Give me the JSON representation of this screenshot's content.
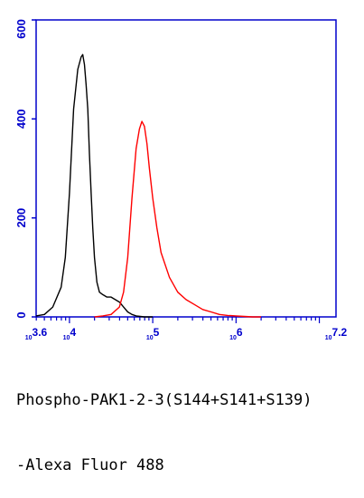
{
  "chart_data": {
    "type": "line",
    "title": "",
    "xlabel_lines": [
      "Phospho-PAK1-2-3(S144+S141+S139)",
      "-Alexa Fluor 488"
    ],
    "ylabel": "",
    "xscale": "log",
    "xlim": [
      3.6,
      7.2
    ],
    "ylim": [
      0,
      600
    ],
    "yticks": [
      "0",
      "200",
      "400",
      "600"
    ],
    "xticks": [
      {
        "pos": 3.6,
        "label": "10 3.6"
      },
      {
        "pos": 4,
        "label": "10 4"
      },
      {
        "pos": 5,
        "label": "10 5"
      },
      {
        "pos": 6,
        "label": "10 6"
      },
      {
        "pos": 7.2,
        "label": "10 7.2"
      }
    ],
    "series": [
      {
        "color": "#000000",
        "x": [
          3.6,
          3.7,
          3.8,
          3.9,
          3.95,
          4.0,
          4.05,
          4.1,
          4.14,
          4.16,
          4.18,
          4.2,
          4.22,
          4.24,
          4.26,
          4.28,
          4.3,
          4.33,
          4.36,
          4.4,
          4.45,
          4.5,
          4.55,
          4.6,
          4.65,
          4.7,
          4.75,
          4.8,
          4.85,
          4.9,
          4.95,
          5.0
        ],
        "y": [
          2,
          5,
          20,
          60,
          120,
          250,
          420,
          500,
          525,
          530,
          510,
          470,
          420,
          330,
          250,
          180,
          120,
          70,
          50,
          45,
          40,
          40,
          35,
          30,
          20,
          10,
          5,
          2,
          1,
          0,
          0,
          0
        ]
      },
      {
        "color": "#ff0000",
        "x": [
          4.3,
          4.4,
          4.5,
          4.6,
          4.65,
          4.7,
          4.75,
          4.8,
          4.84,
          4.87,
          4.9,
          4.93,
          4.96,
          5.0,
          5.05,
          5.1,
          5.2,
          5.3,
          5.4,
          5.5,
          5.6,
          5.7,
          5.8,
          5.9,
          6.0,
          6.1,
          6.2,
          6.3
        ],
        "y": [
          0,
          2,
          5,
          20,
          50,
          120,
          240,
          340,
          380,
          395,
          385,
          350,
          300,
          240,
          180,
          130,
          80,
          50,
          35,
          25,
          15,
          10,
          5,
          3,
          2,
          1,
          0,
          0
        ]
      }
    ],
    "legend": null,
    "grid": false
  }
}
